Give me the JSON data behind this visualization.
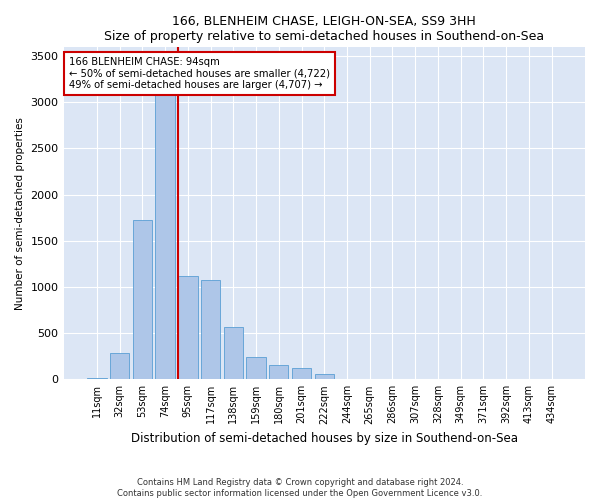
{
  "title": "166, BLENHEIM CHASE, LEIGH-ON-SEA, SS9 3HH",
  "subtitle": "Size of property relative to semi-detached houses in Southend-on-Sea",
  "xlabel": "Distribution of semi-detached houses by size in Southend-on-Sea",
  "ylabel": "Number of semi-detached properties",
  "footer_line1": "Contains HM Land Registry data © Crown copyright and database right 2024.",
  "footer_line2": "Contains public sector information licensed under the Open Government Licence v3.0.",
  "annotation_line1": "166 BLENHEIM CHASE: 94sqm",
  "annotation_line2": "← 50% of semi-detached houses are smaller (4,722)",
  "annotation_line3": "49% of semi-detached houses are larger (4,707) →",
  "bar_labels": [
    "11sqm",
    "32sqm",
    "53sqm",
    "74sqm",
    "95sqm",
    "117sqm",
    "138sqm",
    "159sqm",
    "180sqm",
    "201sqm",
    "222sqm",
    "244sqm",
    "265sqm",
    "286sqm",
    "307sqm",
    "328sqm",
    "349sqm",
    "371sqm",
    "392sqm",
    "413sqm",
    "434sqm"
  ],
  "bar_values": [
    15,
    290,
    1730,
    3330,
    1120,
    1080,
    570,
    240,
    160,
    120,
    55,
    0,
    0,
    0,
    0,
    0,
    0,
    0,
    0,
    0,
    0
  ],
  "bar_color": "#aec6e8",
  "bar_edge_color": "#5a9fd4",
  "vline_color": "#cc0000",
  "annotation_box_color": "#cc0000",
  "plot_background": "#dce6f5",
  "ylim": [
    0,
    3600
  ],
  "yticks": [
    0,
    500,
    1000,
    1500,
    2000,
    2500,
    3000,
    3500
  ],
  "vline_bin_index": 4
}
